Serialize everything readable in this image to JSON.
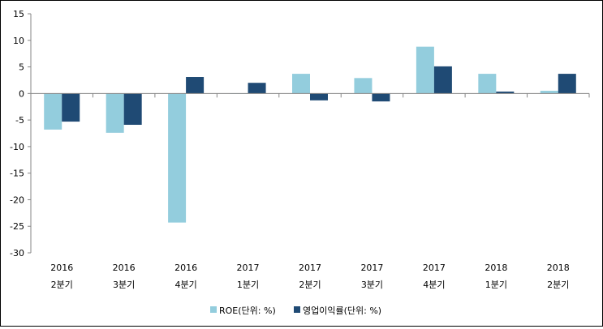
{
  "chart_data": {
    "type": "bar",
    "title": "",
    "xlabel": "",
    "ylabel": "",
    "ylim": [
      -30,
      15
    ],
    "yticks": [
      15,
      10,
      5,
      0,
      -5,
      -10,
      -15,
      -20,
      -25,
      -30
    ],
    "grid": false,
    "legend_position": "bottom",
    "categories": [
      {
        "year": "2016",
        "quarter": "2분기"
      },
      {
        "year": "2016",
        "quarter": "3분기"
      },
      {
        "year": "2016",
        "quarter": "4분기"
      },
      {
        "year": "2017",
        "quarter": "1분기"
      },
      {
        "year": "2017",
        "quarter": "2분기"
      },
      {
        "year": "2017",
        "quarter": "3분기"
      },
      {
        "year": "2017",
        "quarter": "4분기"
      },
      {
        "year": "2018",
        "quarter": "1분기"
      },
      {
        "year": "2018",
        "quarter": "2분기"
      }
    ],
    "series": [
      {
        "name": "ROE(단위: %)",
        "color": "#93CDDD",
        "values": [
          -6.8,
          -7.4,
          -24.3,
          0,
          3.7,
          2.9,
          8.8,
          3.7,
          0.5
        ]
      },
      {
        "name": "영업이익률(단위: %)",
        "color": "#1F4A74",
        "values": [
          -5.3,
          -5.9,
          3.1,
          2.0,
          -1.3,
          -1.5,
          5.1,
          0.35,
          3.7
        ]
      }
    ]
  }
}
